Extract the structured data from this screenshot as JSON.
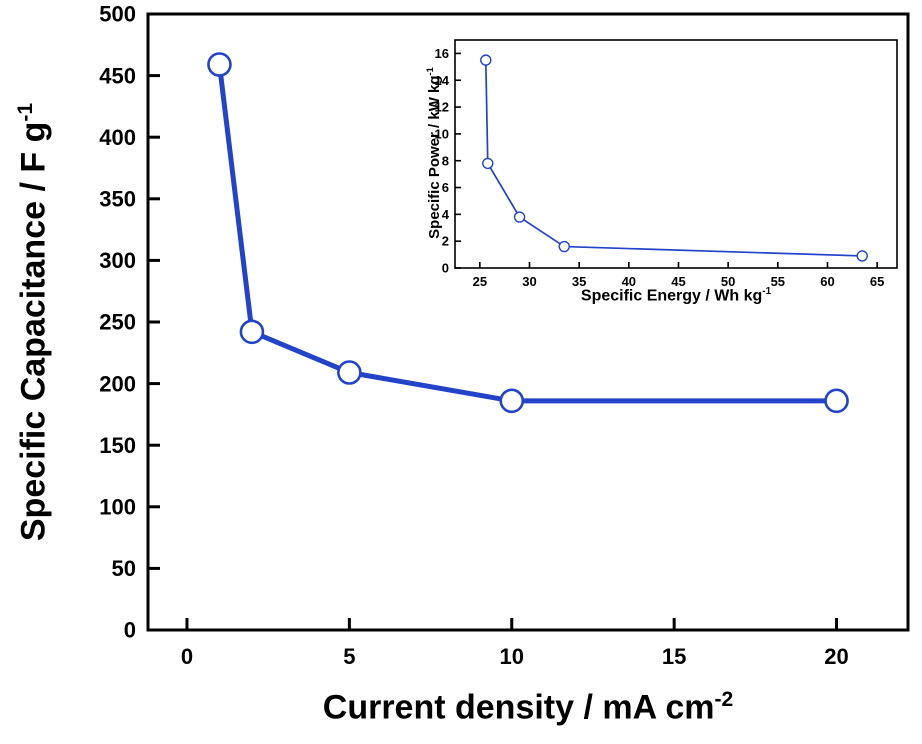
{
  "figure": {
    "background": "#ffffff",
    "accent_color": "#2343cb",
    "frame_color": "#000000"
  },
  "chart_data": [
    {
      "name": "specific-capacitance-vs-current-density",
      "type": "line",
      "title": "",
      "xlabel_base": "Current density / mA cm",
      "xlabel_sup": "-2",
      "ylabel_base": "Specific Capacitance / F g",
      "ylabel_sup": "-1",
      "x": [
        1,
        2,
        5,
        10,
        20
      ],
      "y": [
        459,
        242,
        209,
        186,
        186
      ],
      "xlim": [
        -1.2,
        22.2
      ],
      "ylim": [
        0,
        500
      ],
      "xticks": [
        0,
        5,
        10,
        15,
        20
      ],
      "yticks": [
        0,
        50,
        100,
        150,
        200,
        250,
        300,
        350,
        400,
        450,
        500
      ],
      "marker": "open-circle",
      "line_color": "#2343cb",
      "grid": false,
      "legend": "none"
    },
    {
      "name": "ragone-plot-inset",
      "type": "line",
      "title": "",
      "xlabel_base": "Specific Energy / Wh kg",
      "xlabel_sup": "-1",
      "ylabel_base": "Specific Power / kW kg",
      "ylabel_sup": "-1",
      "x": [
        25.6,
        25.8,
        29,
        33.5,
        63.5
      ],
      "y": [
        15.5,
        7.8,
        3.8,
        1.6,
        0.9
      ],
      "xlim": [
        22.5,
        67
      ],
      "ylim": [
        0,
        17
      ],
      "xticks": [
        25,
        30,
        35,
        40,
        45,
        50,
        55,
        60,
        65
      ],
      "yticks": [
        0,
        2,
        4,
        6,
        8,
        10,
        12,
        14,
        16
      ],
      "marker": "open-circle",
      "line_color": "#2343cb",
      "grid": false,
      "legend": "none"
    }
  ]
}
